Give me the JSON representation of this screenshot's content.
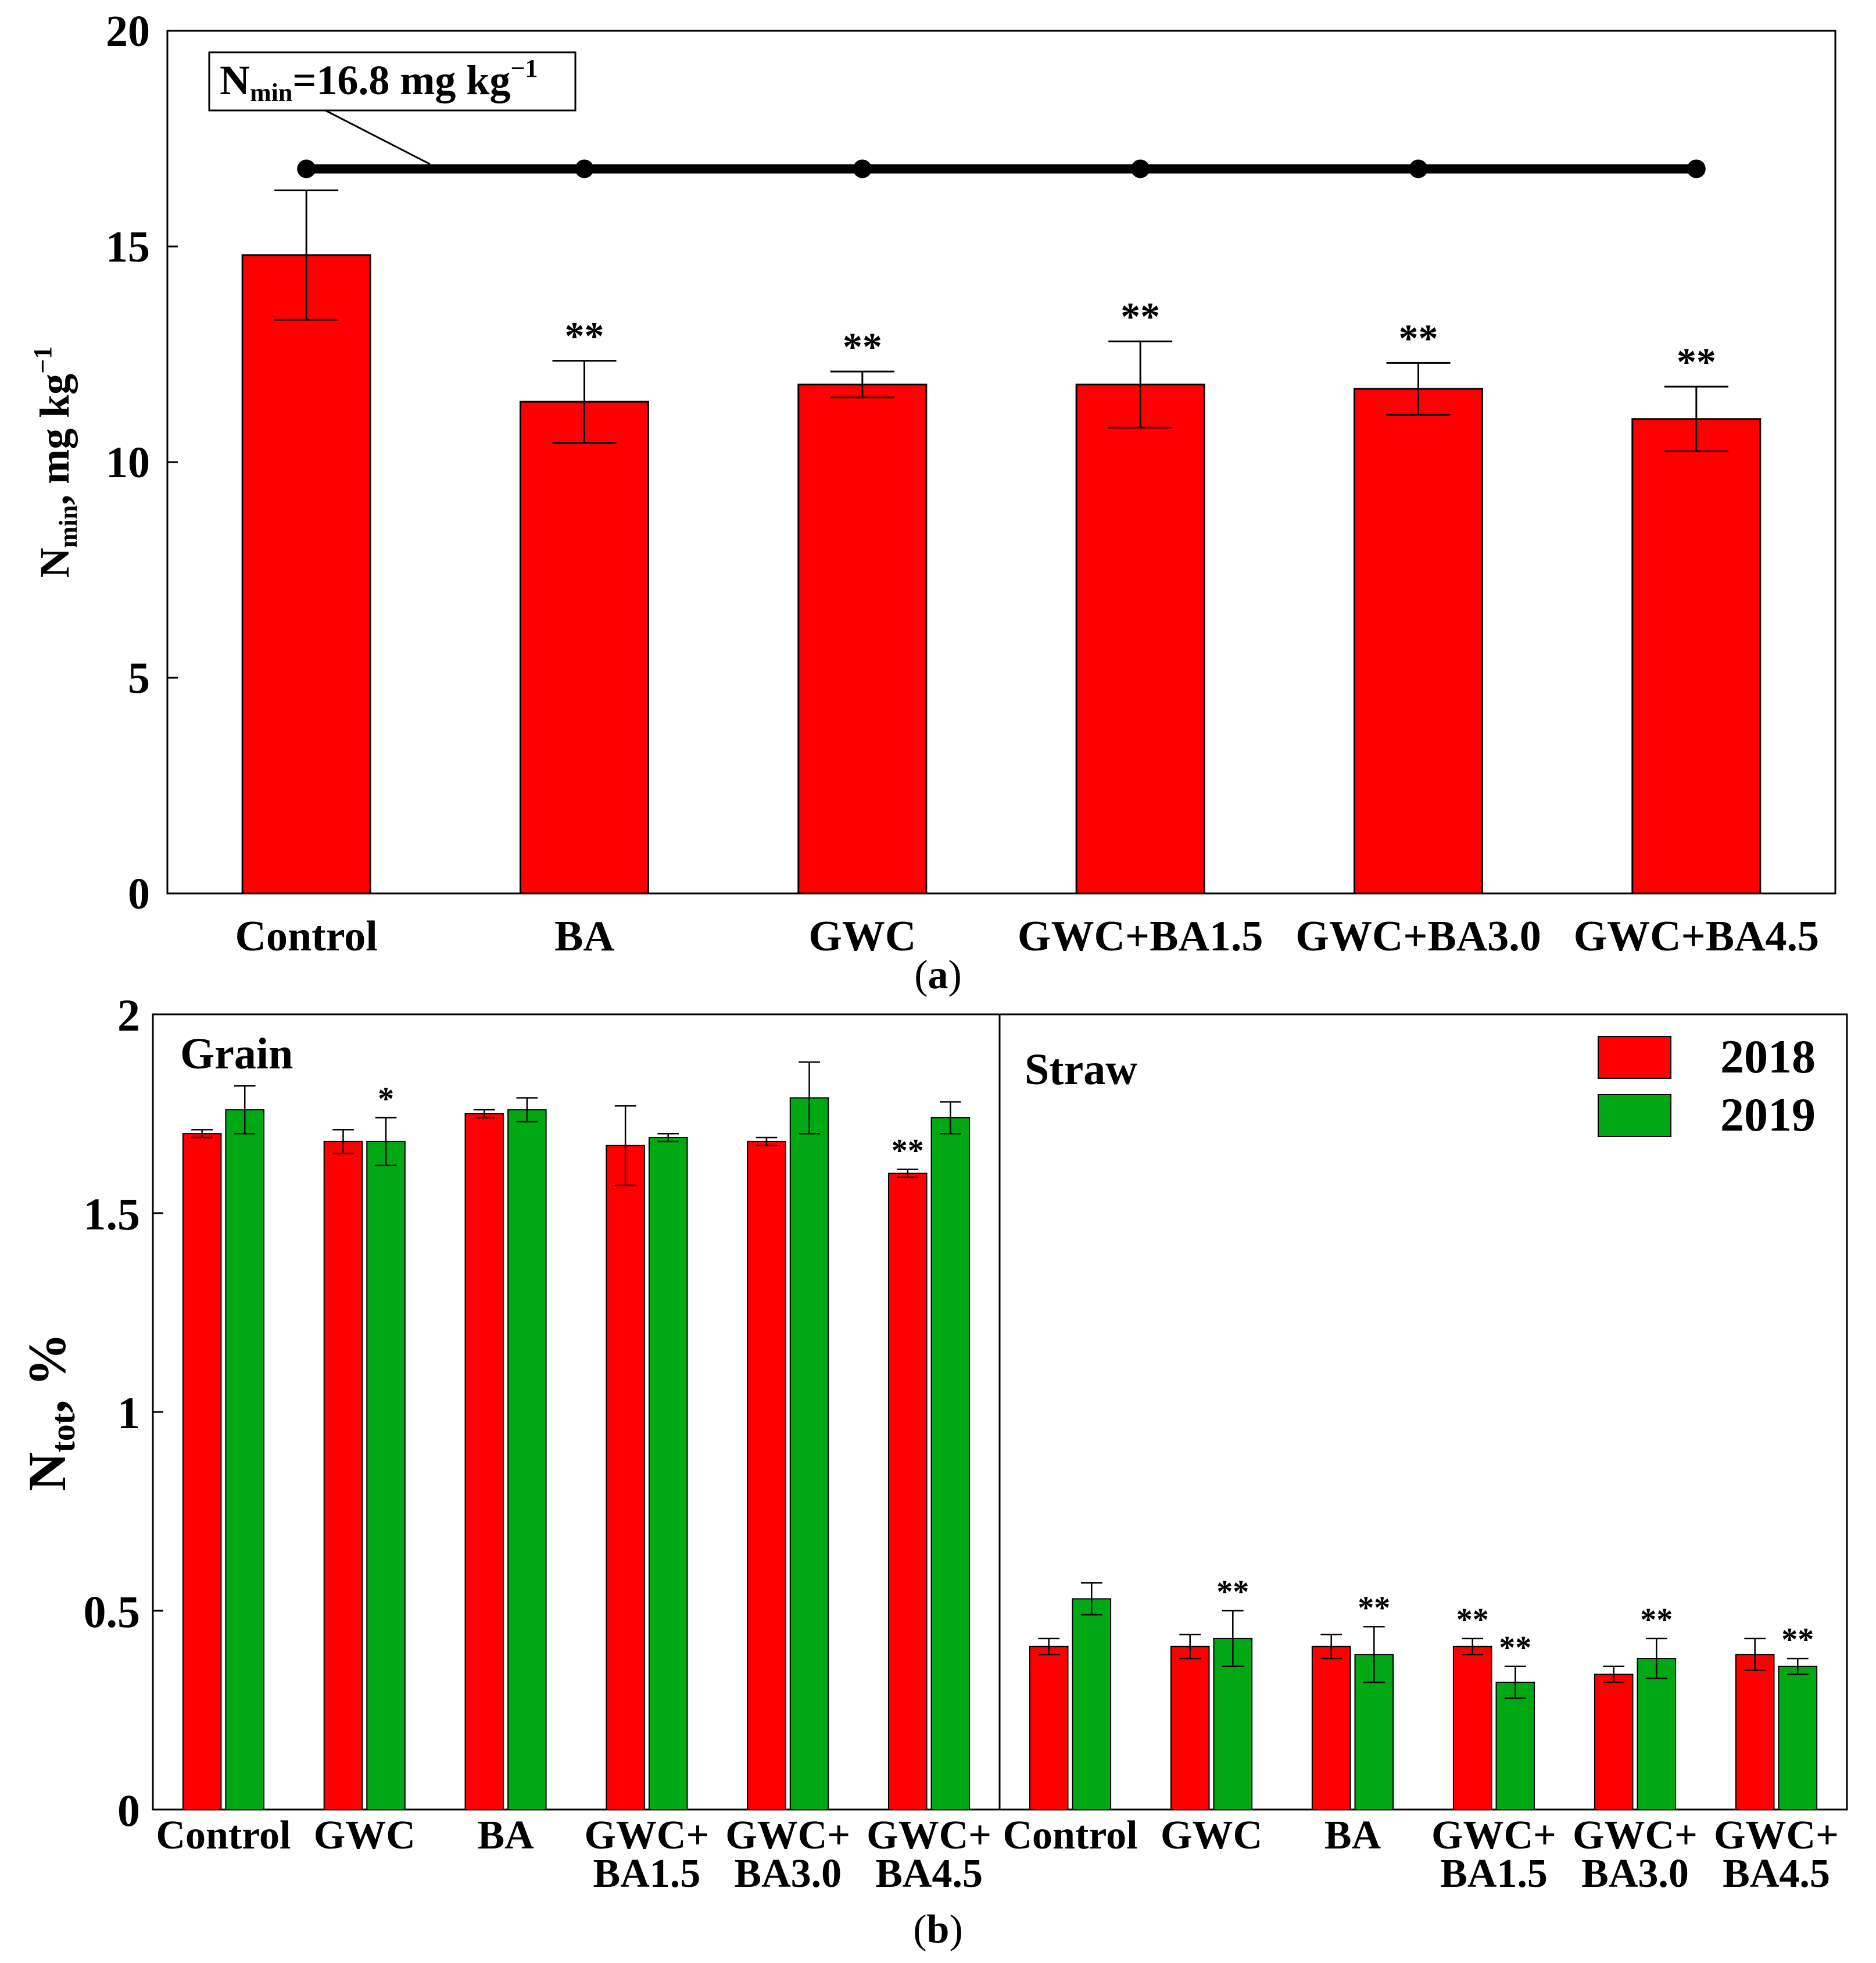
{
  "figure": {
    "panel_a_label": "a",
    "panel_b_label": "b",
    "colors": {
      "bar_2018": "#ff0000",
      "bar_2019": "#00a814",
      "reference_line": "#000000"
    }
  },
  "chart_data": [
    {
      "id": "a",
      "type": "bar",
      "ylabel_main": "N",
      "ylabel_sub": "min",
      "ylabel_unit": ", mg kg",
      "ylabel_sup": "−1",
      "ylim": [
        0,
        20
      ],
      "yticks": [
        0,
        5,
        10,
        15,
        20
      ],
      "categories": [
        "Control",
        "BA",
        "GWC",
        "GWC+BA1.5",
        "GWC+BA3.0",
        "GWC+BA4.5"
      ],
      "values": [
        14.8,
        11.4,
        11.8,
        11.8,
        11.7,
        11.0
      ],
      "errors": [
        1.5,
        0.95,
        0.3,
        1.0,
        0.6,
        0.75
      ],
      "significance": [
        "",
        "**",
        "**",
        "**",
        "**",
        "**"
      ],
      "reference_line": {
        "value": 16.8,
        "label_main": "N",
        "label_sub": "min",
        "label_rest": "=16.8 mg kg",
        "label_sup": "−1"
      }
    },
    {
      "id": "b",
      "type": "bar",
      "ylabel_main": "N",
      "ylabel_sub": "tot",
      "ylabel_unit": ", %",
      "ylim": [
        0,
        2
      ],
      "yticks": [
        "0",
        "0.5",
        "1",
        "1.5",
        "2"
      ],
      "ytick_values": [
        0,
        0.5,
        1,
        1.5,
        2
      ],
      "legend": [
        "2018",
        "2019"
      ],
      "groups": [
        {
          "title": "Grain",
          "categories": [
            [
              "Control"
            ],
            [
              "GWC"
            ],
            [
              "BA"
            ],
            [
              "GWC+",
              "BA1.5"
            ],
            [
              "GWC+",
              "BA3.0"
            ],
            [
              "GWC+",
              "BA4.5"
            ]
          ],
          "series": [
            {
              "name": "2018",
              "values": [
                1.7,
                1.68,
                1.75,
                1.67,
                1.68,
                1.6
              ],
              "errors": [
                0.01,
                0.03,
                0.01,
                0.1,
                0.01,
                0.01
              ],
              "significance": [
                "",
                "",
                "",
                "",
                "",
                "**"
              ]
            },
            {
              "name": "2019",
              "values": [
                1.76,
                1.68,
                1.76,
                1.69,
                1.79,
                1.74
              ],
              "errors": [
                0.06,
                0.06,
                0.03,
                0.01,
                0.09,
                0.04
              ],
              "significance": [
                "",
                "*",
                "",
                "",
                "",
                ""
              ]
            }
          ]
        },
        {
          "title": "Straw",
          "categories": [
            [
              "Control"
            ],
            [
              "GWC"
            ],
            [
              "BA"
            ],
            [
              "GWC+",
              "BA1.5"
            ],
            [
              "GWC+",
              "BA3.0"
            ],
            [
              "GWC+",
              "BA4.5"
            ]
          ],
          "series": [
            {
              "name": "2018",
              "values": [
                0.41,
                0.41,
                0.41,
                0.41,
                0.34,
                0.39
              ],
              "errors": [
                0.02,
                0.03,
                0.03,
                0.02,
                0.02,
                0.04
              ],
              "significance": [
                "",
                "",
                "",
                "**",
                "",
                ""
              ]
            },
            {
              "name": "2019",
              "values": [
                0.53,
                0.43,
                0.39,
                0.32,
                0.38,
                0.36
              ],
              "errors": [
                0.04,
                0.07,
                0.07,
                0.04,
                0.05,
                0.02
              ],
              "significance": [
                "",
                "**",
                "**",
                "**",
                "**",
                "**"
              ]
            }
          ]
        }
      ]
    }
  ]
}
